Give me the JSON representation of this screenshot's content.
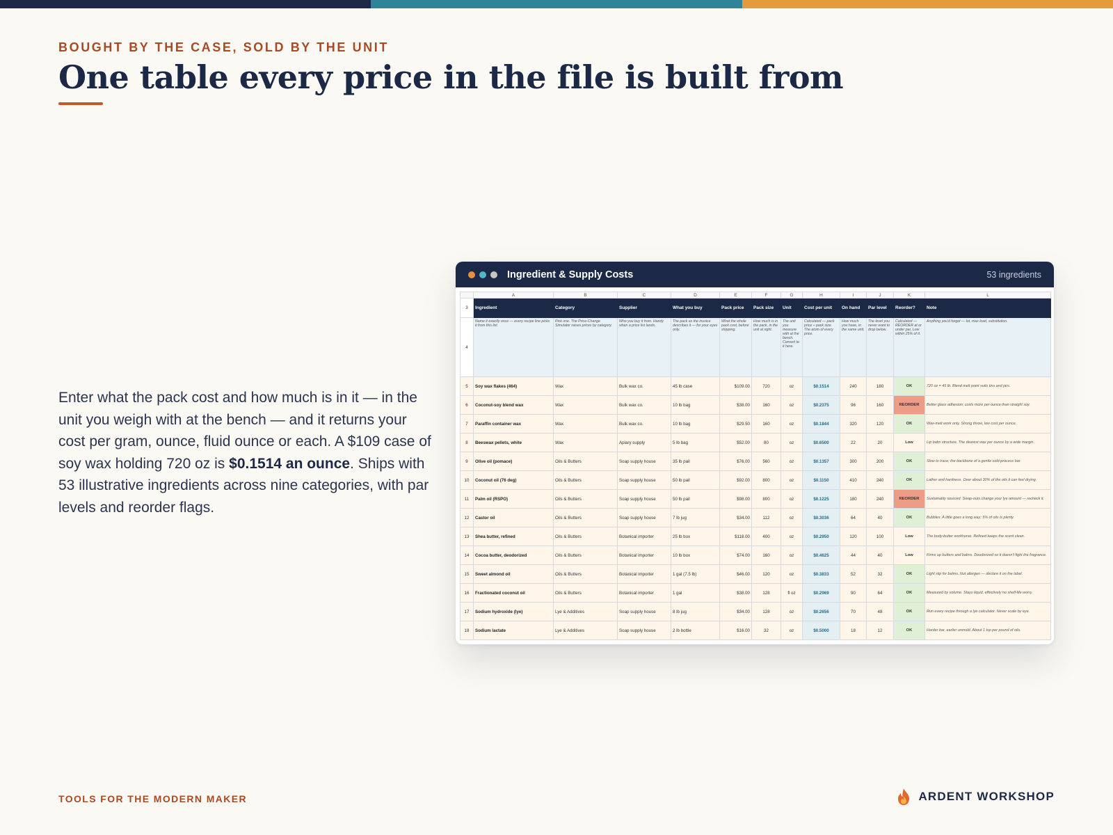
{
  "colors": {
    "navy": "#1b2846",
    "teal": "#2f8497",
    "orange": "#e59a3b",
    "rust": "#a84a24"
  },
  "eyebrow": "BOUGHT BY THE CASE, SOLD BY THE UNIT",
  "title": "One table every price in the file is built from",
  "body": {
    "text_before": "Enter what the pack cost and how much is in it — in the unit you weigh with at the bench — and it returns your cost per gram, ounce, fluid ounce or each. A $109 case of soy wax holding 720 oz is ",
    "bold": "$0.1514 an ounce",
    "text_after": ". Ships with 53 illustrative ingredients across nine categories, with par levels and reorder flags."
  },
  "footer": {
    "tagline": "TOOLS FOR THE MODERN MAKER",
    "brand": "ARDENT WORKSHOP",
    "brand_icon": "flame-icon"
  },
  "window": {
    "title": "Ingredient & Supply Costs",
    "count": "53 ingredients",
    "dots": [
      "#e8903a",
      "#4fb8c6",
      "#c9c4bd"
    ]
  },
  "sheet": {
    "column_letters": [
      "A",
      "B",
      "C",
      "D",
      "E",
      "F",
      "G",
      "H",
      "I",
      "J",
      "K",
      "L"
    ],
    "header_row_number": "3",
    "headers": [
      "Ingredient",
      "Category",
      "Supplier",
      "What you buy",
      "Pack price",
      "Pack size",
      "Unit",
      "Cost per unit",
      "On hand",
      "Par level",
      "Reorder?",
      "Note"
    ],
    "desc_row_number": "4",
    "descriptions": [
      "Name it exactly once — every recipe line picks it from this list.",
      "Pick one. The Price-Change Simulator raises prices by category.",
      "Who you buy it from. Handy when a price list lands.",
      "The pack as the invoice describes it — for your eyes only.",
      "What the whole pack cost, before shipping.",
      "How much is in the pack, in the unit at right.",
      "The unit you measure with at the bench. Convert to it here.",
      "Calculated — pack price ÷ pack size. The atom of every price.",
      "How much you have, in the same unit.",
      "The level you never want to drop below.",
      "Calculated — REORDER at or under par, Low within 25% of it.",
      "Anything you'd forget — lot, max load, substitution."
    ],
    "rows": [
      {
        "n": "5",
        "ingredient": "Soy wax flakes (464)",
        "category": "Wax",
        "supplier": "Bulk wax co.",
        "buy": "45 lb case",
        "price": "$109.00",
        "size": "720",
        "unit": "oz",
        "cost": "$0.1514",
        "on_hand": "240",
        "par": "180",
        "reorder": "OK",
        "note": "720 oz = 45 lb. Blend melt point suits tins and jars."
      },
      {
        "n": "6",
        "ingredient": "Coconut-soy blend wax",
        "category": "Wax",
        "supplier": "Bulk wax co.",
        "buy": "10 lb bag",
        "price": "$38.00",
        "size": "160",
        "unit": "oz",
        "cost": "$0.2375",
        "on_hand": "96",
        "par": "160",
        "reorder": "REORDER",
        "note": "Better glass adhesion; costs more per ounce than straight soy."
      },
      {
        "n": "7",
        "ingredient": "Paraffin container wax",
        "category": "Wax",
        "supplier": "Bulk wax co.",
        "buy": "10 lb bag",
        "price": "$29.50",
        "size": "160",
        "unit": "oz",
        "cost": "$0.1844",
        "on_hand": "320",
        "par": "120",
        "reorder": "OK",
        "note": "Wax-melt work only. Strong throw, low cost per ounce."
      },
      {
        "n": "8",
        "ingredient": "Beeswax pellets, white",
        "category": "Wax",
        "supplier": "Apiary supply",
        "buy": "5 lb bag",
        "price": "$52.00",
        "size": "80",
        "unit": "oz",
        "cost": "$0.6500",
        "on_hand": "22",
        "par": "20",
        "reorder": "Low",
        "note": "Lip balm structure. The dearest wax per ounce by a wide margin."
      },
      {
        "n": "9",
        "ingredient": "Olive oil (pomace)",
        "category": "Oils & Butters",
        "supplier": "Soap supply house",
        "buy": "35 lb pail",
        "price": "$76.00",
        "size": "560",
        "unit": "oz",
        "cost": "$0.1357",
        "on_hand": "300",
        "par": "200",
        "reorder": "OK",
        "note": "Slow to trace; the backbone of a gentle cold-process bar."
      },
      {
        "n": "10",
        "ingredient": "Coconut oil (76 deg)",
        "category": "Oils & Butters",
        "supplier": "Soap supply house",
        "buy": "50 lb pail",
        "price": "$92.00",
        "size": "800",
        "unit": "oz",
        "cost": "$0.1150",
        "on_hand": "410",
        "par": "240",
        "reorder": "OK",
        "note": "Lather and hardness. Over about 30% of the oils it can feel drying."
      },
      {
        "n": "11",
        "ingredient": "Palm oil (RSPO)",
        "category": "Oils & Butters",
        "supplier": "Soap supply house",
        "buy": "50 lb pail",
        "price": "$98.00",
        "size": "800",
        "unit": "oz",
        "cost": "$0.1225",
        "on_hand": "180",
        "par": "240",
        "reorder": "REORDER",
        "note": "Sustainably sourced. Swap-outs change your lye amount — recheck it."
      },
      {
        "n": "12",
        "ingredient": "Castor oil",
        "category": "Oils & Butters",
        "supplier": "Soap supply house",
        "buy": "7 lb jug",
        "price": "$34.00",
        "size": "112",
        "unit": "oz",
        "cost": "$0.3036",
        "on_hand": "64",
        "par": "40",
        "reorder": "OK",
        "note": "Bubbles. A little goes a long way; 5% of oils is plenty."
      },
      {
        "n": "13",
        "ingredient": "Shea butter, refined",
        "category": "Oils & Butters",
        "supplier": "Botanical importer",
        "buy": "25 lb box",
        "price": "$118.00",
        "size": "400",
        "unit": "oz",
        "cost": "$0.2950",
        "on_hand": "120",
        "par": "100",
        "reorder": "Low",
        "note": "The body-butter workhorse. Refined keeps the scent clean."
      },
      {
        "n": "14",
        "ingredient": "Cocoa butter, deodorized",
        "category": "Oils & Butters",
        "supplier": "Botanical importer",
        "buy": "10 lb box",
        "price": "$74.00",
        "size": "160",
        "unit": "oz",
        "cost": "$0.4625",
        "on_hand": "44",
        "par": "40",
        "reorder": "Low",
        "note": "Firms up butters and balms. Deodorized so it doesn't fight the fragrance."
      },
      {
        "n": "15",
        "ingredient": "Sweet almond oil",
        "category": "Oils & Butters",
        "supplier": "Botanical importer",
        "buy": "1 gal (7.5 lb)",
        "price": "$46.00",
        "size": "120",
        "unit": "oz",
        "cost": "$0.3833",
        "on_hand": "52",
        "par": "32",
        "reorder": "OK",
        "note": "Light slip for balms. Nut allergen — declare it on the label."
      },
      {
        "n": "16",
        "ingredient": "Fractionated coconut oil",
        "category": "Oils & Butters",
        "supplier": "Botanical importer",
        "buy": "1 gal",
        "price": "$38.00",
        "size": "128",
        "unit": "fl oz",
        "cost": "$0.2969",
        "on_hand": "90",
        "par": "64",
        "reorder": "OK",
        "note": "Measured by volume. Stays liquid, effectively no shelf-life worry."
      },
      {
        "n": "17",
        "ingredient": "Sodium hydroxide (lye)",
        "category": "Lye & Additives",
        "supplier": "Soap supply house",
        "buy": "8 lb jug",
        "price": "$34.00",
        "size": "128",
        "unit": "oz",
        "cost": "$0.2656",
        "on_hand": "70",
        "par": "48",
        "reorder": "OK",
        "note": "Run every recipe through a lye calculator. Never scale by eye."
      },
      {
        "n": "18",
        "ingredient": "Sodium lactate",
        "category": "Lye & Additives",
        "supplier": "Soap supply house",
        "buy": "2 lb bottle",
        "price": "$16.00",
        "size": "32",
        "unit": "oz",
        "cost": "$0.5000",
        "on_hand": "18",
        "par": "12",
        "reorder": "OK",
        "note": "Harder bar, earlier unmold. About 1 tsp per pound of oils."
      }
    ]
  }
}
